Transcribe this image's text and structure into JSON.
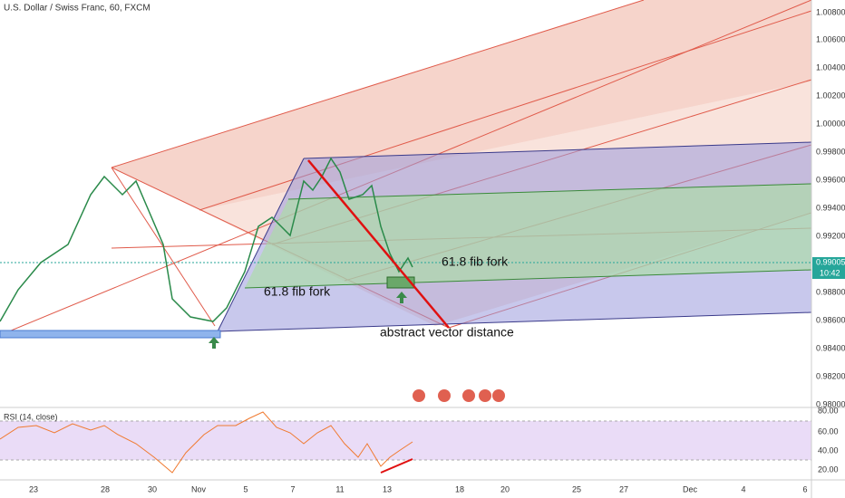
{
  "header": {
    "title": "U.S. Dollar / Swiss Franc, 60, FXCM"
  },
  "price_axis": {
    "labels": [
      "1.00800",
      "1.00600",
      "1.00400",
      "1.00200",
      "1.00000",
      "0.99800",
      "0.99600",
      "0.99400",
      "0.99200",
      "0.98800",
      "0.98600",
      "0.98400",
      "0.98200",
      "0.98000"
    ],
    "current_price": "0.99005",
    "countdown": "10:42"
  },
  "annotations": [
    "61.8 fib fork",
    "61.8 fib fork",
    "abstract vector distance"
  ],
  "rsi": {
    "title": "RSI (14, close)",
    "labels": [
      "80.00",
      "60.00",
      "40.00",
      "20.00"
    ]
  },
  "date_axis": {
    "labels": [
      "23",
      "28",
      "30",
      "Nov",
      "5",
      "7",
      "11",
      "13",
      "18",
      "20",
      "25",
      "27",
      "Dec",
      "4",
      "6"
    ]
  }
}
